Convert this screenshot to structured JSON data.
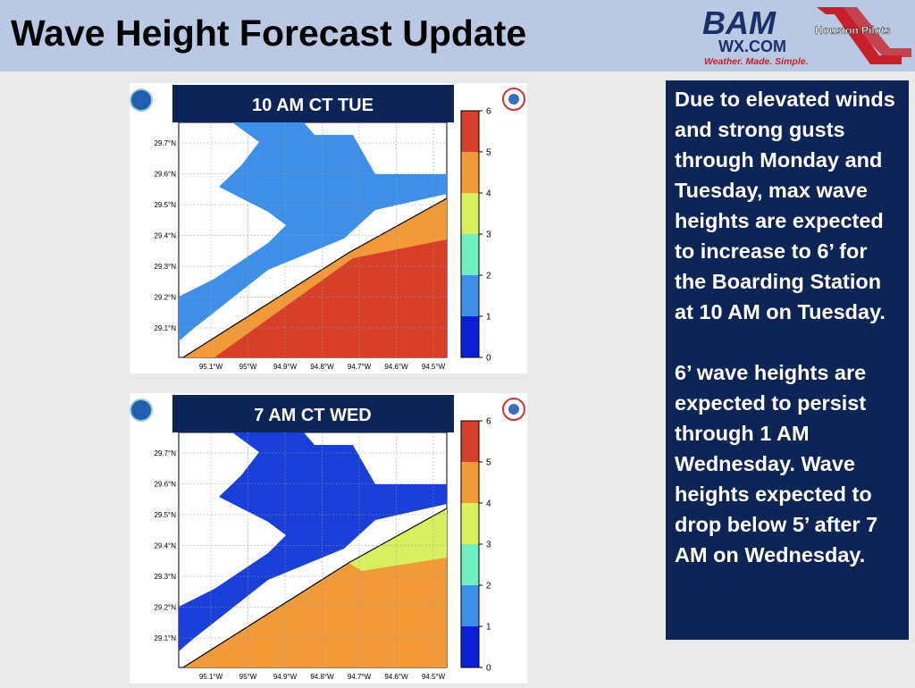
{
  "header": {
    "title": "Wave Height Forecast Update",
    "logos": {
      "bam": "BAM",
      "wx": "WX.COM",
      "tagline": "Weather. Made. Simple.",
      "pilots": "Houston Pilots"
    }
  },
  "panels": [
    {
      "label": "10 AM CT TUE",
      "latitude_labels": [
        "29.7°N",
        "29.6°N",
        "29.5°N",
        "29.4°N",
        "29.3°N",
        "29.2°N",
        "29.1°N"
      ],
      "longitude_labels": [
        "95.1°W",
        "95°W",
        "94.9°W",
        "94.8°W",
        "94.7°W",
        "94.6°W",
        "94.5°W"
      ],
      "colorbar_ticks": [
        0,
        1,
        2,
        3,
        4,
        5,
        6
      ]
    },
    {
      "label": "7 AM CT WED",
      "latitude_labels": [
        "29.7°N",
        "29.6°N",
        "29.5°N",
        "29.4°N",
        "29.3°N",
        "29.2°N",
        "29.1°N"
      ],
      "longitude_labels": [
        "95.1°W",
        "95°W",
        "94.9°W",
        "94.8°W",
        "94.7°W",
        "94.6°W",
        "94.5°W"
      ],
      "colorbar_ticks": [
        0,
        1,
        2,
        3,
        4,
        5,
        6
      ]
    }
  ],
  "sidebar": {
    "paragraphs": [
      "Due to elevated winds and strong gusts through Monday and Tuesday, max wave heights are expected to increase to 6’ for the Boarding Station at 10 AM on Tuesday.",
      "6’ wave heights are expected to persist through 1 AM Wednesday. Wave heights expected to drop below 5’ after 7 AM on Wednesday."
    ]
  }
}
